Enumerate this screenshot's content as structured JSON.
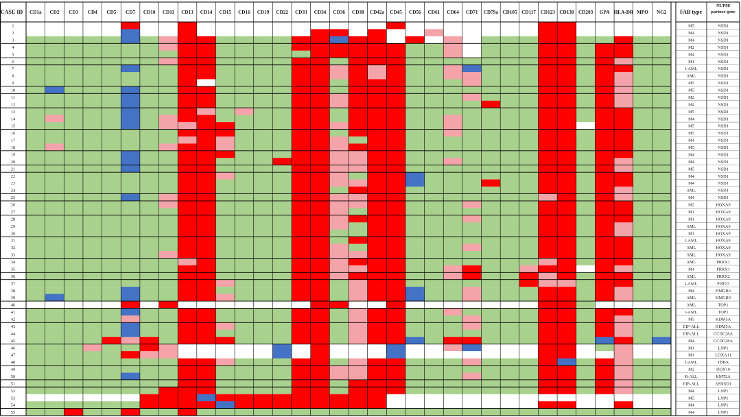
{
  "chart_data": {
    "type": "heatmap",
    "title": "",
    "row_header": "CASE ID",
    "columns": [
      "CD1a",
      "CD2",
      "CD3",
      "CD4",
      "CD5",
      "CD7",
      "CD10",
      "CD11",
      "CD13",
      "CD14",
      "CD15",
      "CD16",
      "CD19",
      "CD22",
      "CD33",
      "CD34",
      "CD36",
      "CD38",
      "CD42a",
      "CD45",
      "CD56",
      "CD61",
      "CD64",
      "CD71",
      "CD79a",
      "CD105",
      "CD117",
      "CD123",
      "CD138",
      "CD203",
      "GPA",
      "HLA-DR",
      "MPO",
      "NG2"
    ],
    "rows": [
      "1",
      "2",
      "3",
      "4",
      "5",
      "6",
      "7",
      "8",
      "9",
      "10",
      "11",
      "12",
      "13",
      "14",
      "15",
      "16",
      "17",
      "18",
      "19",
      "20",
      "21",
      "22",
      "23",
      "24",
      "25",
      "26",
      "27",
      "28",
      "29",
      "30",
      "31",
      "32",
      "33",
      "34",
      "35",
      "36",
      "37",
      "38",
      "39",
      "40",
      "41",
      "42",
      "43",
      "44",
      "45",
      "46",
      "47",
      "48",
      "49",
      "50",
      "51",
      "52",
      "53",
      "54",
      "55"
    ],
    "fab_header": "FAB type",
    "fusion_header": "NUP98 partner gene",
    "fab": [
      "M5",
      "M4",
      "M4",
      "M2",
      "M4",
      "M1",
      "t-AML",
      "AML",
      "M5",
      "M5",
      "M2",
      "M4",
      "M5",
      "M4",
      "M5",
      "M5",
      "M4",
      "M5",
      "M4",
      "M4",
      "M5",
      "M4",
      "M4",
      "AML",
      "M4",
      "M2",
      "M1",
      "M1",
      "AML",
      "M1",
      "t-AML",
      "AML",
      "AML",
      "AML",
      "M4",
      "AML",
      "t-AML",
      "M4",
      "AML",
      "AML",
      "t-AML",
      "M5",
      "EIP-ALL",
      "EIP-ALL",
      "M4",
      "M1",
      "M1",
      "t-AML",
      "M2",
      "B-ALL",
      "EIP-ALL",
      "M4",
      "M5",
      "M4",
      "M4"
    ],
    "fusion": [
      "NSD1",
      "NSD1",
      "NSD1",
      "NSD1",
      "NSD1",
      "NSD1",
      "NSD1",
      "NSD1",
      "NSD1",
      "NSD1",
      "NSD1",
      "NSD1",
      "NSD1",
      "NSD1",
      "NSD1",
      "NSD1",
      "NSD1",
      "NSD1",
      "NSD1",
      "NSD1",
      "NSD1",
      "NSD1",
      "NSD1",
      "NSD1",
      "NSD1",
      "HOXA9",
      "HOXA9",
      "HOXA9",
      "HOXA9",
      "HOXA9",
      "HOXA9",
      "HOXA9",
      "HOXA9",
      "PRRX1",
      "PRRX1",
      "PRRX2",
      "PHF23",
      "HMGB3",
      "HMGB3",
      "TOP1",
      "TOP1",
      "KDM5A",
      "KDM5A",
      "CCDC28A",
      "CCDC28A",
      "LNP1",
      "LOXA11",
      "TBBX",
      "DDX10",
      "KMT2A",
      "ASNSD1",
      "LNP1",
      "LNP1",
      "LNP1",
      "LNP1"
    ],
    "color_key": {
      "0": "#ffffff",
      "1": "#a9d18e",
      "2": "#f4a3a8",
      "3": "#ff0000",
      "4": "#4472c4"
    },
    "matrix": [
      "0000030030000000000300000003300000",
      "0000040030000003303002000003300000",
      "1111141233111133433030201113311311",
      "1111111233111133333311201113313311",
      "1111111133111113333311201113313311",
      "1111111233111133133311111113313211",
      "1111141133111133232311241113313311",
      "1111111133111133232311221113313211",
      "1111111130111133133311121113313211",
      "1411141133111133133311111113313211",
      "1111141133111133233311121113313211",
      "1111141133111133233311113113313211",
      "1111141132121133133311111113313311",
      "1211141233111133133311211113313311",
      "1111141223311133233311211113303311",
      "1111111133311133133311211113313311",
      "1111111123211133213311111113313311",
      "1211111233211133233311111113313311",
      "1111141133311133223311111113313311",
      "1111141133111333223311211113313211",
      "1111141133111133223311111113313211",
      "1111111133211133213341111113313311",
      "1111111133111133223341113113313311",
      "1111111133111133133311111113313211",
      "1111141233111133223311111112313211",
      "1111111233111133223311121113313311",
      "1111111133111133213311111113313311",
      "1111111133111133233311121113313311",
      "1111111133111133213311111113313211",
      "1111111133111133113311111113313211",
      "1111111133111133133311111113313311",
      "1111111133111133213311121113313311",
      "1111111233111133223311111113313311",
      "1111111123111133233311111112313311",
      "1111111133111133223311231123303211",
      "1111111133111133233311231132313311",
      "1111111133211133123311111132213311",
      "1111141133111133123341121113313211",
      "1411141133211133123341121113313211",
      "0000030300000003300300000003310000",
      "1111141133111133123311211113313311",
      "1111121133111133123311121113313211",
      "1111141133211133123311121113313211",
      "1111141133111133123311111113313211",
      "1111323133311133123341331113314314",
      "1112113200000403000400240003301200",
      "1111132200000403000400000003300200",
      "1111111133211133123311121113413211",
      "1111111133111133223311111113313211",
      "1111141133111133223311121113313211",
      "1111111133111133133311111113313211",
      "1111111333111133133311111113313211",
      "0000003334333333333000000000000000",
      "1111113333433333333000000003300300",
      "1131131131111111111111111111111111"
    ]
  }
}
